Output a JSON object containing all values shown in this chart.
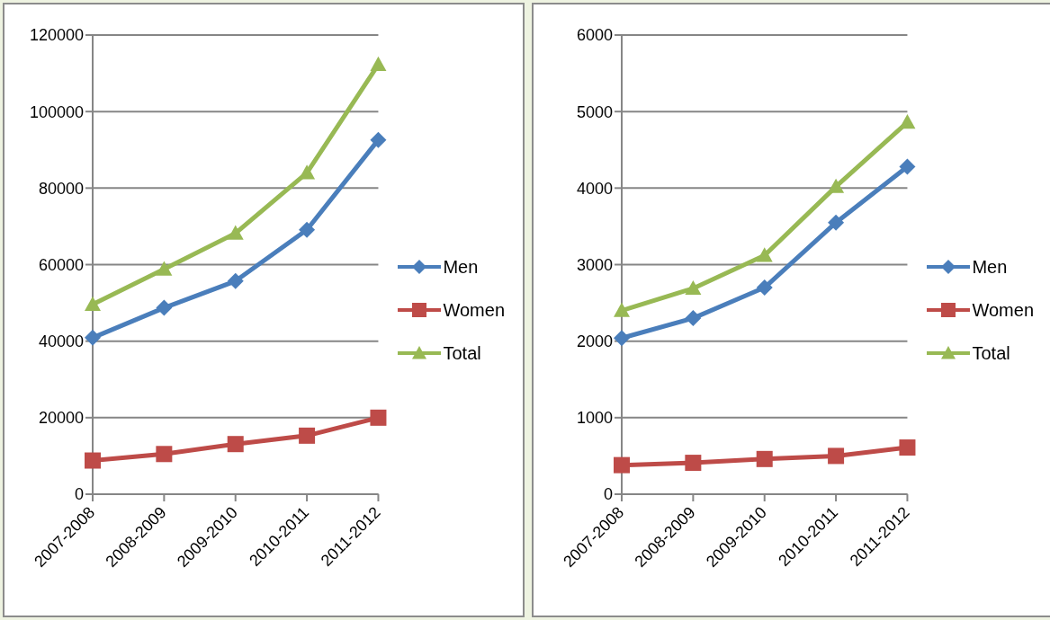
{
  "chart_data": [
    {
      "type": "line",
      "categories": [
        "2007-2008",
        "2008-2009",
        "2009-2010",
        "2010-2011",
        "2011-2012"
      ],
      "ylim": [
        0,
        120000
      ],
      "yticks": [
        0,
        20000,
        40000,
        60000,
        80000,
        100000,
        120000
      ],
      "grid": "y",
      "legend": "right",
      "series": [
        {
          "name": "Men",
          "color": "#4a7ebb",
          "marker": "diamond",
          "values": [
            40900,
            48700,
            55700,
            69100,
            92600
          ]
        },
        {
          "name": "Women",
          "color": "#be4b48",
          "marker": "square",
          "values": [
            8800,
            10500,
            13100,
            15300,
            20000
          ]
        },
        {
          "name": "Total",
          "color": "#98b954",
          "marker": "triangle",
          "values": [
            49600,
            58800,
            68200,
            84000,
            112300
          ]
        }
      ]
    },
    {
      "type": "line",
      "categories": [
        "2007-2008",
        "2008-2009",
        "2009-2010",
        "2010-2011",
        "2011-2012"
      ],
      "ylim": [
        0,
        6000
      ],
      "yticks": [
        0,
        1000,
        2000,
        3000,
        4000,
        5000,
        6000
      ],
      "grid": "y",
      "legend": "right",
      "series": [
        {
          "name": "Men",
          "color": "#4a7ebb",
          "marker": "diamond",
          "values": [
            2040,
            2300,
            2700,
            3550,
            4280
          ]
        },
        {
          "name": "Women",
          "color": "#be4b48",
          "marker": "square",
          "values": [
            380,
            410,
            460,
            500,
            610
          ]
        },
        {
          "name": "Total",
          "color": "#98b954",
          "marker": "triangle",
          "values": [
            2400,
            2690,
            3120,
            4020,
            4860
          ]
        }
      ]
    }
  ]
}
